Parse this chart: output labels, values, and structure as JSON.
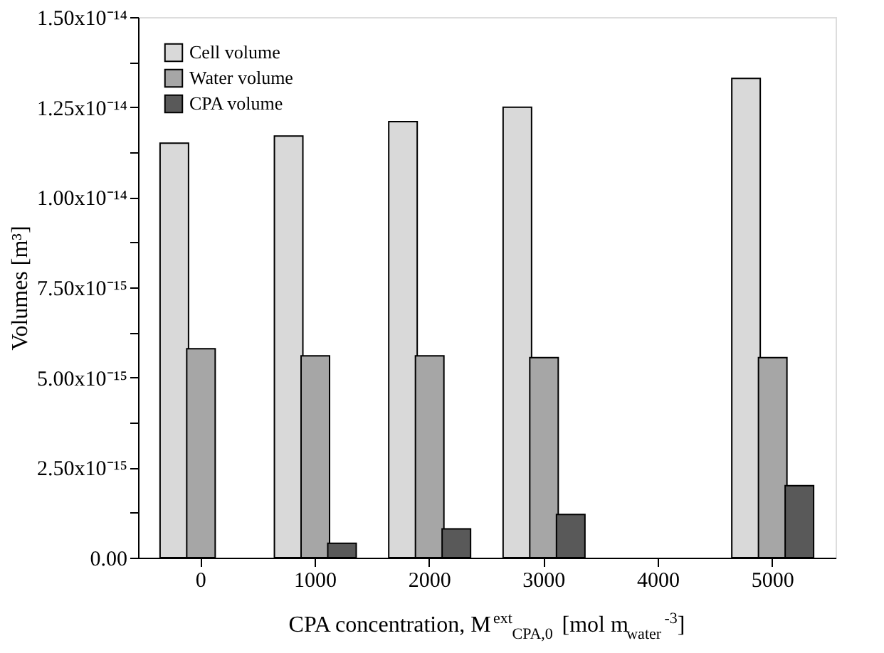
{
  "chart_data": {
    "type": "bar",
    "xlabel": "CPA concentration, M$^{ext}$$_{CPA,0}$ [mol m$_{water}$$^{-3}$]",
    "ylabel": "Volumes [m³]",
    "categories": [
      "0",
      "1000",
      "2000",
      "3000",
      "4000",
      "5000"
    ],
    "series": [
      {
        "name": "Cell volume",
        "color": "#d9d9d9",
        "values": [
          1.15e-14,
          1.17e-14,
          1.21e-14,
          1.25e-14,
          null,
          1.33e-14
        ]
      },
      {
        "name": "Water volume",
        "color": "#a6a6a6",
        "values": [
          5.8e-15,
          5.6e-15,
          5.6e-15,
          5.55e-15,
          null,
          5.55e-15
        ]
      },
      {
        "name": "CPA volume",
        "color": "#595959",
        "values": [
          null,
          4e-16,
          8e-16,
          1.2e-15,
          null,
          2e-15
        ]
      }
    ],
    "ylim": [
      0,
      1.5e-14
    ],
    "yticks": [
      {
        "value": 0,
        "label": "0.00"
      },
      {
        "value": 1.25e-15,
        "label": null
      },
      {
        "value": 2.5e-15,
        "label": "2.50x10⁻¹⁵"
      },
      {
        "value": 3.75e-15,
        "label": null
      },
      {
        "value": 5e-15,
        "label": "5.00x10⁻¹⁵"
      },
      {
        "value": 6.25e-15,
        "label": null
      },
      {
        "value": 7.5e-15,
        "label": "7.50x10⁻¹⁵"
      },
      {
        "value": 8.75e-15,
        "label": null
      },
      {
        "value": 1e-14,
        "label": "1.00x10⁻¹⁴"
      },
      {
        "value": 1.125e-14,
        "label": null
      },
      {
        "value": 1.25e-14,
        "label": "1.25x10⁻¹⁴"
      },
      {
        "value": 1.375e-14,
        "label": null
      },
      {
        "value": 1.5e-14,
        "label": "1.50x10⁻¹⁴"
      }
    ],
    "legend": "top left",
    "grid": false
  }
}
